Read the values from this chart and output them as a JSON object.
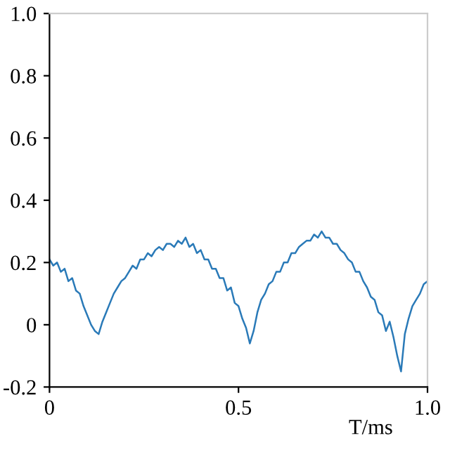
{
  "chart_data": {
    "type": "line",
    "xlabel": "T/ms",
    "x": [
      0.0,
      0.01,
      0.02,
      0.03,
      0.04,
      0.05,
      0.06,
      0.07,
      0.08,
      0.09,
      0.1,
      0.11,
      0.12,
      0.13,
      0.14,
      0.15,
      0.16,
      0.17,
      0.18,
      0.19,
      0.2,
      0.21,
      0.22,
      0.23,
      0.24,
      0.25,
      0.26,
      0.27,
      0.28,
      0.29,
      0.3,
      0.31,
      0.32,
      0.33,
      0.34,
      0.35,
      0.36,
      0.37,
      0.38,
      0.39,
      0.4,
      0.41,
      0.42,
      0.43,
      0.44,
      0.45,
      0.46,
      0.47,
      0.48,
      0.49,
      0.5,
      0.51,
      0.52,
      0.53,
      0.54,
      0.55,
      0.56,
      0.57,
      0.58,
      0.59,
      0.6,
      0.61,
      0.62,
      0.63,
      0.64,
      0.65,
      0.66,
      0.67,
      0.68,
      0.69,
      0.7,
      0.71,
      0.72,
      0.73,
      0.74,
      0.75,
      0.76,
      0.77,
      0.78,
      0.79,
      0.8,
      0.81,
      0.82,
      0.83,
      0.84,
      0.85,
      0.86,
      0.87,
      0.88,
      0.89,
      0.9,
      0.91,
      0.92,
      0.93,
      0.94,
      0.95,
      0.96,
      0.97,
      0.98,
      0.99,
      1.0
    ],
    "series": [
      {
        "color": "#2a7ab8",
        "values": [
          0.21,
          0.19,
          0.2,
          0.17,
          0.18,
          0.14,
          0.15,
          0.11,
          0.1,
          0.06,
          0.03,
          0.0,
          -0.02,
          -0.03,
          0.01,
          0.04,
          0.07,
          0.1,
          0.12,
          0.14,
          0.15,
          0.17,
          0.19,
          0.18,
          0.21,
          0.21,
          0.23,
          0.22,
          0.24,
          0.25,
          0.24,
          0.26,
          0.26,
          0.25,
          0.27,
          0.26,
          0.28,
          0.25,
          0.26,
          0.23,
          0.24,
          0.21,
          0.21,
          0.18,
          0.18,
          0.15,
          0.15,
          0.11,
          0.12,
          0.07,
          0.06,
          0.02,
          -0.01,
          -0.06,
          -0.02,
          0.04,
          0.08,
          0.1,
          0.13,
          0.14,
          0.17,
          0.17,
          0.2,
          0.2,
          0.23,
          0.23,
          0.25,
          0.26,
          0.27,
          0.27,
          0.29,
          0.28,
          0.3,
          0.28,
          0.28,
          0.26,
          0.26,
          0.24,
          0.23,
          0.21,
          0.2,
          0.17,
          0.17,
          0.14,
          0.12,
          0.09,
          0.08,
          0.04,
          0.03,
          -0.02,
          0.01,
          -0.04,
          -0.1,
          -0.15,
          -0.03,
          0.02,
          0.06,
          0.08,
          0.1,
          0.13,
          0.14
        ]
      }
    ],
    "xlim": [
      0,
      1.0
    ],
    "ylim": [
      -0.2,
      1.0
    ],
    "xticks": [
      0,
      0.5,
      {
        "value": 1.0,
        "label": "1.0"
      }
    ],
    "yticks": [
      -0.2,
      0,
      0.2,
      0.4,
      0.6,
      0.8,
      {
        "value": 1.0,
        "label": "1.0"
      }
    ],
    "grid": false,
    "marker": "none",
    "line_style": "solid"
  }
}
